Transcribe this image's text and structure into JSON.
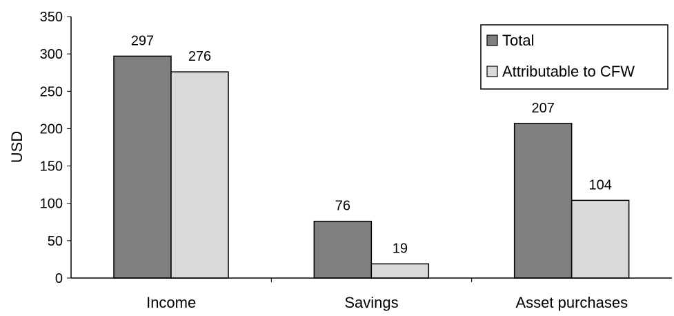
{
  "chart_data": {
    "type": "bar",
    "title": "",
    "xlabel": "",
    "ylabel": "USD",
    "ylim": [
      0,
      350
    ],
    "yticks": [
      0,
      50,
      100,
      150,
      200,
      250,
      300,
      350
    ],
    "grid": false,
    "legend_position": "top-right",
    "categories": [
      "Income",
      "Savings",
      "Asset purchases"
    ],
    "series": [
      {
        "name": "Total",
        "color": "#808080",
        "values": [
          297,
          76,
          207
        ]
      },
      {
        "name": "Attributable to CFW",
        "color": "#d9d9d9",
        "values": [
          276,
          19,
          104
        ]
      }
    ],
    "data_labels": true
  }
}
